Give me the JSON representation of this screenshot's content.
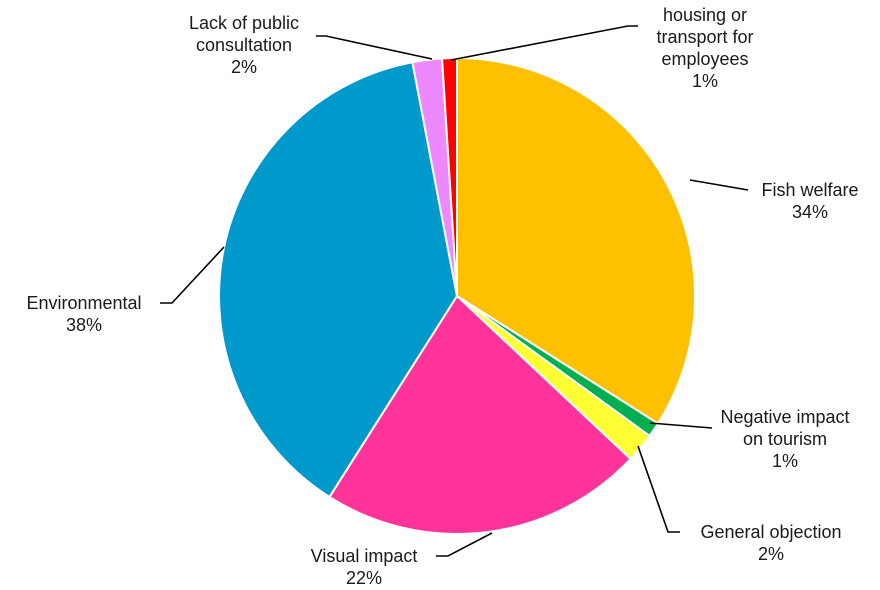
{
  "chart_data": {
    "type": "pie",
    "title": "",
    "slices": [
      {
        "name": "Fish welfare",
        "value": 34,
        "value_label": "34%",
        "color": "#FFC000"
      },
      {
        "name": "Negative impact on tourism",
        "value": 1,
        "value_label": "1%",
        "color": "#00B050"
      },
      {
        "name": "General objection",
        "value": 2,
        "value_label": "2%",
        "color": "#FFFF33"
      },
      {
        "name": "Visual impact",
        "value": 22,
        "value_label": "22%",
        "color": "#FF3399"
      },
      {
        "name": "Environmental",
        "value": 38,
        "value_label": "38%",
        "color": "#0099CC"
      },
      {
        "name": "Lack of public consultation",
        "value": 2,
        "value_label": "2%",
        "color": "#EE88FF"
      },
      {
        "name": "No affordable housing or transport for employees",
        "value": 1,
        "value_label": "1%",
        "color": "#FF0000"
      }
    ],
    "legend": "none",
    "labels": "outside-with-leader-lines"
  }
}
